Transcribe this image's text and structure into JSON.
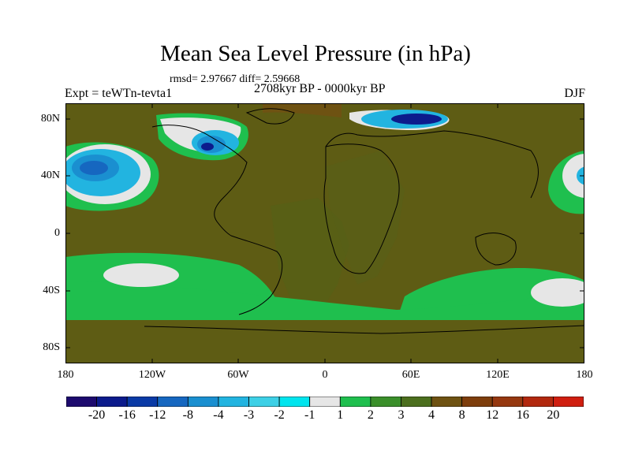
{
  "title": "Mean Sea Level Pressure (in hPa)",
  "stats": "rmsd= 2.97667 diff= 2.59668",
  "period": "2708kyr BP - 0000kyr BP",
  "experiment": "Expt = teWTn-tevta1",
  "season": "DJF",
  "lat_ticks": [
    "80N",
    "40N",
    "0",
    "40S",
    "80S"
  ],
  "lon_ticks": [
    "180",
    "120W",
    "60W",
    "0",
    "60E",
    "120E",
    "180"
  ],
  "colorbar": {
    "labels": [
      "-20",
      "-16",
      "-12",
      "-8",
      "-4",
      "-3",
      "-2",
      "-1",
      "1",
      "2",
      "3",
      "4",
      "8",
      "12",
      "16",
      "20"
    ],
    "colors": [
      "#1d0a6e",
      "#0c1b8c",
      "#0a3aa6",
      "#1667c0",
      "#1a8fd0",
      "#22b4e0",
      "#3dd0e6",
      "#00e5ee",
      "#e6e6e6",
      "#1fbf4e",
      "#3a8f2a",
      "#4c6f1e",
      "#6e5212",
      "#7e3e0c",
      "#963810",
      "#b2280e",
      "#d01e10"
    ]
  },
  "colors": {
    "background_field": "#5e5c14",
    "ocean_band": "#1fbf4e",
    "coast": "#000000"
  }
}
